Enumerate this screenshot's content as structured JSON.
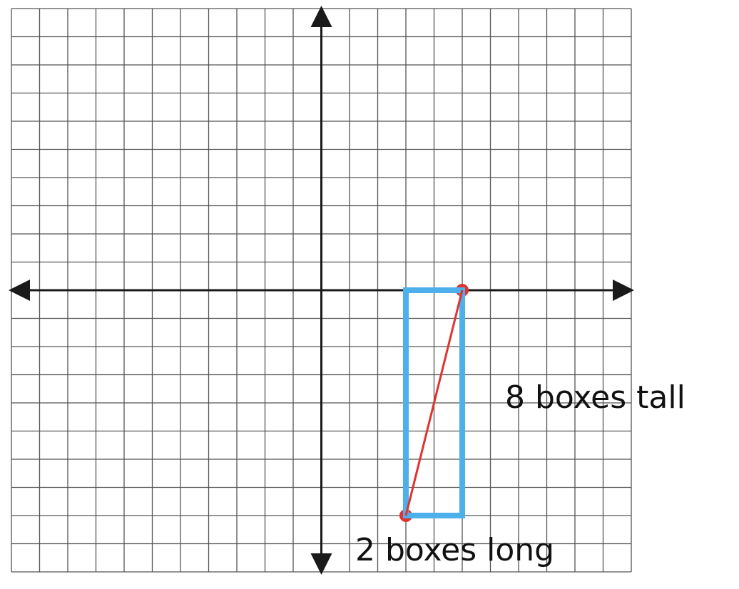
{
  "graph": {
    "grid_columns": 22,
    "grid_rows": 20,
    "x_range": [
      -11,
      11
    ],
    "y_range": [
      -10,
      10
    ],
    "grid_color": "#555555",
    "axis_color": "#1a1a1a"
  },
  "points": [
    {
      "x": 5,
      "y": 0
    },
    {
      "x": 3,
      "y": -8
    }
  ],
  "point_color": "#e0322f",
  "segment_color": "#e0322f",
  "rectangle": {
    "x_min": 3,
    "x_max": 5,
    "y_min": -8,
    "y_max": 0,
    "color": "#4db0ea"
  },
  "labels": {
    "height_label": "8 boxes tall",
    "width_label": "2 boxes long"
  }
}
